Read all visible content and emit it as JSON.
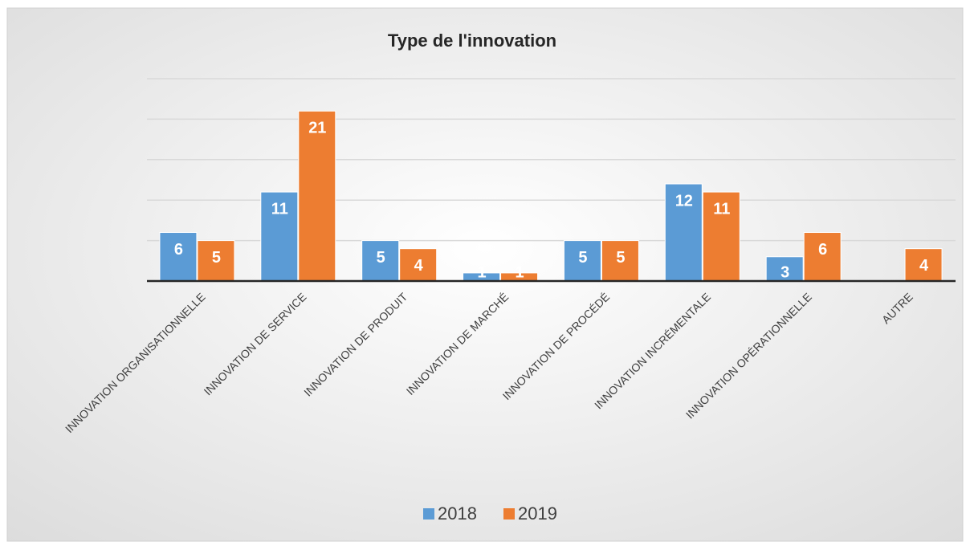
{
  "chart_data": {
    "type": "bar",
    "title": "Type de l'innovation",
    "categories": [
      "INNOVATION ORGANISATIONNELLE",
      "INNOVATION DE SERVICE",
      "INNOVATION DE PRODUIT",
      "INNOVATION DE MARCHÉ",
      "INNOVATION DE PROCÉDÉ",
      "INNOVATION INCRÉMENTALE",
      "INNOVATION OPÉRATIONNELLE",
      "AUTRE"
    ],
    "series": [
      {
        "name": "2018",
        "color": "#5b9bd5",
        "values": [
          6,
          11,
          5,
          1,
          5,
          12,
          3,
          null
        ]
      },
      {
        "name": "2019",
        "color": "#ed7d31",
        "values": [
          5,
          21,
          4,
          1,
          5,
          11,
          6,
          4
        ]
      }
    ],
    "ylim": [
      0,
      25
    ],
    "yticks": [
      0,
      5,
      10,
      15,
      20,
      25
    ],
    "grid": true,
    "legend": "bottom"
  }
}
